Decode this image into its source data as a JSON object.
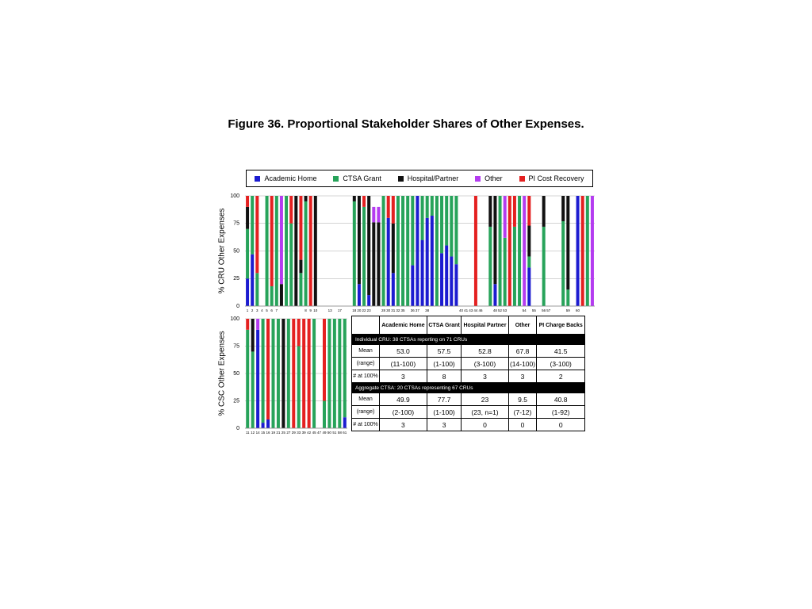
{
  "figure_title": "Figure 36.  Proportional Stakeholder Shares of Other Expenses.",
  "chart_data": [
    {
      "type": "stacked_bar",
      "ylabel": "% CRU Other Expenses",
      "ylim": [
        0,
        100
      ],
      "yticks": [
        0,
        25,
        50,
        75,
        100
      ],
      "grid": true,
      "categories": [
        "1",
        "2",
        "3",
        "4",
        "5",
        "6",
        "7",
        null,
        null,
        null,
        null,
        null,
        "8",
        "9",
        "10",
        null,
        null,
        "13",
        null,
        "17",
        null,
        null,
        "18",
        "20",
        "22",
        "23",
        null,
        null,
        "28",
        "30",
        "31",
        "32",
        "35",
        null,
        "36",
        "37",
        null,
        "38",
        null,
        null,
        null,
        null,
        null,
        null,
        "40",
        "41",
        "43",
        "44",
        "46",
        null,
        null,
        "48",
        "52",
        "53",
        null,
        null,
        null,
        "54",
        null,
        "55",
        null,
        "56",
        "57",
        null,
        null,
        null,
        "59",
        null,
        "60",
        null,
        null,
        null
      ],
      "series": [
        {
          "name": "Academic Home",
          "color": "#1c1cd0",
          "values": [
            25,
            47,
            0,
            null,
            0,
            0,
            0,
            0,
            0,
            0,
            0,
            0,
            0,
            0,
            0,
            null,
            null,
            null,
            null,
            null,
            null,
            null,
            0,
            20,
            0,
            10,
            0,
            0,
            0,
            80,
            30,
            0,
            0,
            0,
            37,
            100,
            60,
            80,
            82,
            0,
            48,
            55,
            45,
            38,
            null,
            null,
            null,
            0,
            null,
            null,
            0,
            20,
            0,
            0,
            0,
            0,
            0,
            0,
            35,
            null,
            null,
            0,
            null,
            null,
            null,
            0,
            0,
            null,
            100,
            0,
            0,
            0
          ]
        },
        {
          "name": "CTSA Grant",
          "color": "#27a35a",
          "values": [
            45,
            53,
            30,
            null,
            100,
            18,
            100,
            0,
            100,
            75,
            0,
            30,
            95,
            0,
            0,
            null,
            null,
            null,
            null,
            null,
            null,
            null,
            95,
            0,
            90,
            0,
            0,
            0,
            100,
            0,
            0,
            100,
            100,
            100,
            63,
            0,
            40,
            20,
            18,
            100,
            52,
            45,
            55,
            62,
            null,
            null,
            null,
            0,
            null,
            null,
            72,
            0,
            100,
            62,
            0,
            72,
            100,
            0,
            10,
            null,
            null,
            72,
            null,
            null,
            null,
            77,
            15,
            null,
            0,
            0,
            100,
            0
          ]
        },
        {
          "name": "Hospital/Partner",
          "color": "#111111",
          "values": [
            20,
            0,
            0,
            null,
            0,
            0,
            0,
            20,
            0,
            0,
            100,
            12,
            5,
            0,
            100,
            null,
            null,
            null,
            null,
            null,
            null,
            null,
            5,
            80,
            0,
            90,
            76,
            76,
            0,
            0,
            45,
            0,
            0,
            0,
            0,
            0,
            0,
            0,
            0,
            0,
            0,
            0,
            0,
            0,
            null,
            null,
            null,
            0,
            null,
            null,
            28,
            80,
            0,
            0,
            0,
            0,
            0,
            0,
            28,
            null,
            null,
            28,
            null,
            null,
            null,
            23,
            85,
            null,
            0,
            0,
            0,
            0
          ]
        },
        {
          "name": "Other",
          "color": "#b43cf0",
          "values": [
            0,
            0,
            0,
            null,
            0,
            0,
            0,
            80,
            0,
            0,
            0,
            0,
            0,
            0,
            0,
            null,
            null,
            null,
            null,
            null,
            null,
            null,
            0,
            0,
            0,
            0,
            14,
            14,
            0,
            0,
            0,
            0,
            0,
            0,
            0,
            0,
            0,
            0,
            0,
            0,
            0,
            0,
            0,
            0,
            null,
            null,
            null,
            0,
            null,
            null,
            0,
            0,
            0,
            38,
            0,
            0,
            0,
            100,
            0,
            null,
            null,
            0,
            null,
            null,
            null,
            0,
            0,
            null,
            0,
            0,
            0,
            100
          ]
        },
        {
          "name": "PI Cost Recovery",
          "color": "#e42020",
          "values": [
            10,
            0,
            70,
            null,
            0,
            82,
            0,
            0,
            0,
            25,
            0,
            58,
            0,
            100,
            0,
            null,
            null,
            null,
            null,
            null,
            null,
            null,
            0,
            0,
            10,
            0,
            0,
            0,
            0,
            20,
            25,
            0,
            0,
            0,
            0,
            0,
            0,
            0,
            0,
            0,
            0,
            0,
            0,
            0,
            null,
            null,
            null,
            100,
            null,
            null,
            0,
            0,
            0,
            0,
            100,
            28,
            0,
            0,
            27,
            null,
            null,
            0,
            null,
            null,
            null,
            0,
            0,
            null,
            0,
            100,
            0,
            0
          ]
        }
      ]
    },
    {
      "type": "stacked_bar",
      "ylabel": "% CSC Other Expenses",
      "ylim": [
        0,
        100
      ],
      "yticks": [
        0,
        25,
        50,
        75,
        100
      ],
      "grid": true,
      "categories": [
        "11",
        "12",
        "14",
        "15",
        "16",
        "19",
        "21",
        "25",
        "27",
        "29",
        "33",
        "39",
        "42",
        "45",
        "47",
        "49",
        "50",
        "51",
        "58",
        "61"
      ],
      "series": [
        {
          "color": "#1c1cd0",
          "values": [
            0,
            0,
            90,
            5,
            8,
            0,
            0,
            0,
            0,
            0,
            0,
            0,
            0,
            0,
            null,
            0,
            0,
            0,
            0,
            10
          ]
        },
        {
          "color": "#27a35a",
          "values": [
            90,
            70,
            0,
            95,
            0,
            100,
            100,
            0,
            100,
            0,
            75,
            0,
            0,
            100,
            null,
            25,
            100,
            100,
            100,
            90
          ]
        },
        {
          "color": "#111111",
          "values": [
            0,
            30,
            0,
            0,
            0,
            0,
            0,
            100,
            0,
            0,
            0,
            0,
            0,
            0,
            null,
            0,
            0,
            0,
            0,
            0
          ]
        },
        {
          "color": "#b43cf0",
          "values": [
            0,
            0,
            10,
            0,
            0,
            0,
            0,
            0,
            0,
            0,
            0,
            0,
            0,
            0,
            null,
            0,
            0,
            0,
            0,
            0
          ]
        },
        {
          "color": "#e42020",
          "values": [
            10,
            0,
            0,
            0,
            92,
            0,
            0,
            0,
            0,
            100,
            25,
            100,
            100,
            0,
            null,
            75,
            0,
            0,
            0,
            0
          ]
        }
      ]
    }
  ],
  "table": {
    "header": [
      "Academic Home",
      "CTSA Grant",
      "Hospital Partner",
      "Other",
      "PI Charge Backs"
    ],
    "sections": [
      {
        "title": "Individual CRU:  38 CTSAs reporting on 71 CRUs",
        "rows": [
          [
            "Mean",
            "53.0",
            "57.5",
            "52.8",
            "67.8",
            "41.5"
          ],
          [
            "(range)",
            "(11-100)",
            "(1-100)",
            "(3-100)",
            "(14-100)",
            "(3-100)"
          ],
          [
            "# at 100%",
            "3",
            "8",
            "3",
            "3",
            "2"
          ]
        ]
      },
      {
        "title": "Aggregate CTSA:  20 CTSAs representing 67 CRUs",
        "rows": [
          [
            "Mean",
            "49.9",
            "77.7",
            "23",
            "9.5",
            "40.8"
          ],
          [
            "(range)",
            "(2-100)",
            "(1-100)",
            "(23, n=1)",
            "(7-12)",
            "(1-92)"
          ],
          [
            "# at 100%",
            "3",
            "3",
            "0",
            "0",
            "0"
          ]
        ]
      }
    ]
  }
}
